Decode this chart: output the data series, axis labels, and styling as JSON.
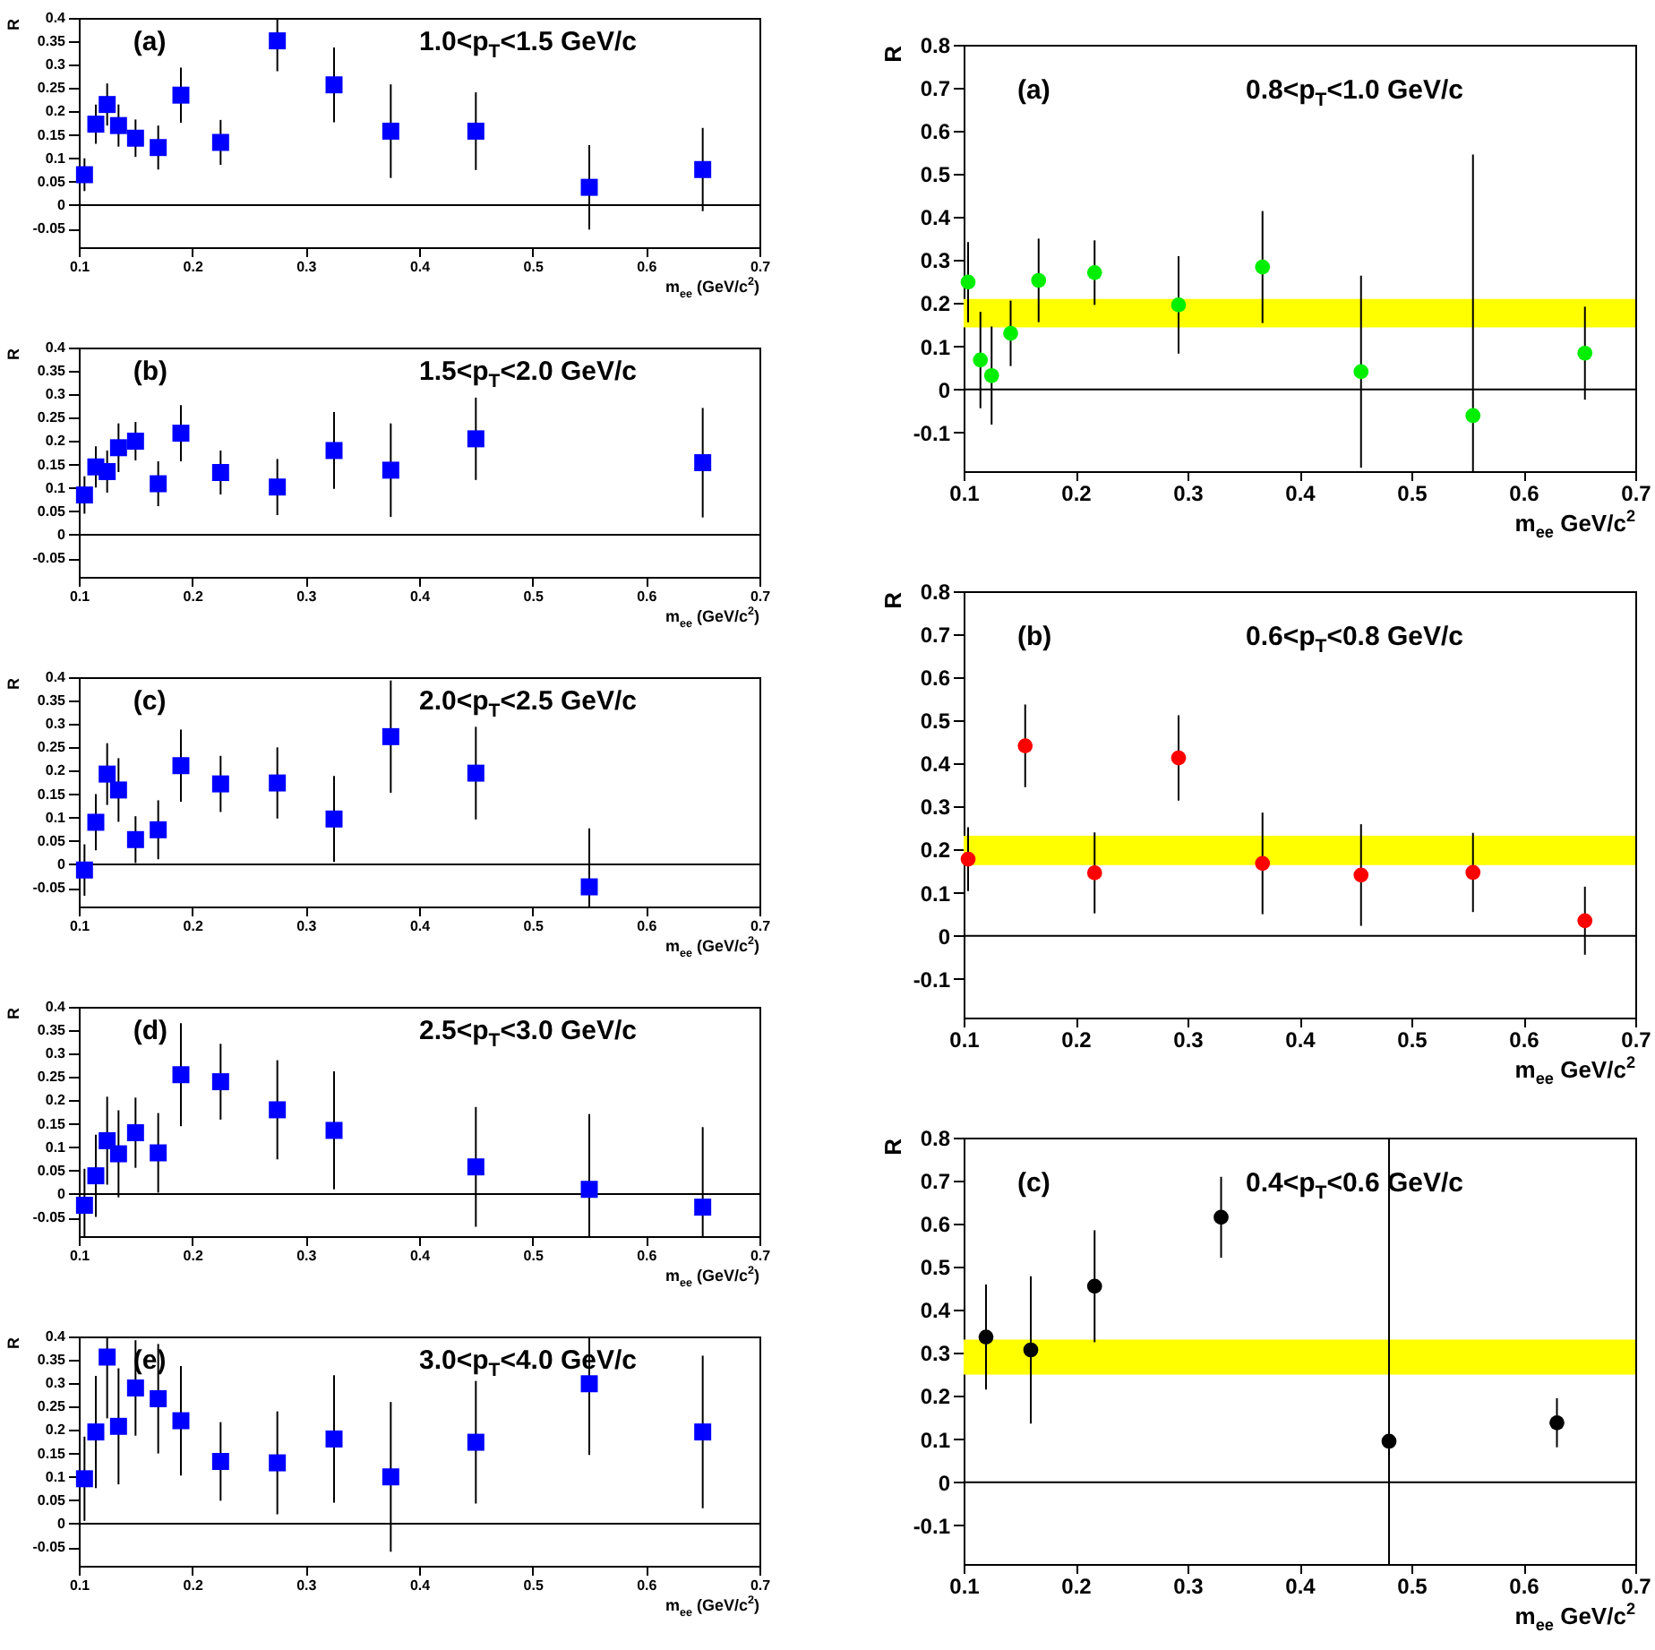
{
  "chart_data": [
    {
      "type": "scatter",
      "ylabel": "R",
      "xlabel": "m$_{ee}$ (GeV/c$^{2}$)",
      "annotations": [
        "(a)",
        "1.0<p$_{T}$<1.5 GeV/c"
      ],
      "xlim": [
        0.1,
        0.7
      ],
      "ylim": [
        -0.09,
        0.4
      ],
      "xticks": [
        0.1,
        0.2,
        0.3,
        0.4,
        0.5,
        0.6,
        0.7
      ],
      "yticks": [
        -0.05,
        0,
        0.05,
        0.1,
        0.15,
        0.2,
        0.25,
        0.3,
        0.35,
        0.4
      ],
      "marker": "square",
      "ref_lines": [
        {
          "axis": "y",
          "value": 0,
          "color": "#000000"
        }
      ],
      "series": [
        {
          "color": "#0000ff",
          "x": [
            0.105,
            0.115,
            0.125,
            0.135,
            0.15,
            0.17,
            0.19,
            0.225,
            0.275,
            0.325,
            0.375,
            0.45,
            0.55,
            0.65
          ],
          "values": [
            0.065,
            0.173,
            0.215,
            0.17,
            0.143,
            0.123,
            0.235,
            0.134,
            0.351,
            0.257,
            0.158,
            0.158,
            0.038,
            0.076
          ],
          "errors": [
            0.035,
            0.042,
            0.045,
            0.045,
            0.04,
            0.047,
            0.059,
            0.048,
            [
              0.286,
              0.4
            ],
            0.08,
            0.1,
            0.083,
            0.09,
            0.089
          ]
        }
      ]
    },
    {
      "type": "scatter",
      "ylabel": "R",
      "xlabel": "m$_{ee}$ (GeV/c$^{2}$)",
      "annotations": [
        "(b)",
        "1.5<p$_{T}$<2.0 GeV/c"
      ],
      "xlim": [
        0.1,
        0.7
      ],
      "ylim": [
        -0.09,
        0.4
      ],
      "xticks": [
        0.1,
        0.2,
        0.3,
        0.4,
        0.5,
        0.6,
        0.7
      ],
      "yticks": [
        -0.05,
        0,
        0.05,
        0.1,
        0.15,
        0.2,
        0.25,
        0.3,
        0.35,
        0.4
      ],
      "marker": "square",
      "ref_lines": [
        {
          "axis": "y",
          "value": 0,
          "color": "#000000"
        }
      ],
      "series": [
        {
          "color": "#0000ff",
          "x": [
            0.105,
            0.115,
            0.125,
            0.135,
            0.15,
            0.17,
            0.19,
            0.225,
            0.275,
            0.325,
            0.375,
            0.45,
            0.65
          ],
          "values": [
            0.085,
            0.145,
            0.135,
            0.186,
            0.2,
            0.109,
            0.217,
            0.133,
            0.102,
            0.18,
            0.138,
            0.205,
            0.154
          ],
          "errors": [
            0.04,
            0.044,
            0.045,
            0.052,
            0.041,
            0.048,
            0.06,
            0.047,
            0.06,
            0.082,
            0.1,
            0.088,
            0.117
          ]
        }
      ]
    },
    {
      "type": "scatter",
      "ylabel": "R",
      "xlabel": "m$_{ee}$ (GeV/c$^{2}$)",
      "annotations": [
        "(c)",
        "2.0<p$_{T}$<2.5 GeV/c"
      ],
      "xlim": [
        0.1,
        0.7
      ],
      "ylim": [
        -0.09,
        0.4
      ],
      "xticks": [
        0.1,
        0.2,
        0.3,
        0.4,
        0.5,
        0.6,
        0.7
      ],
      "yticks": [
        -0.05,
        0,
        0.05,
        0.1,
        0.15,
        0.2,
        0.25,
        0.3,
        0.35,
        0.4
      ],
      "marker": "square",
      "ref_lines": [
        {
          "axis": "y",
          "value": 0,
          "color": "#000000"
        }
      ],
      "series": [
        {
          "color": "#0000ff",
          "x": [
            0.105,
            0.115,
            0.125,
            0.135,
            0.15,
            0.17,
            0.19,
            0.225,
            0.275,
            0.325,
            0.375,
            0.45,
            0.55
          ],
          "values": [
            -0.012,
            0.09,
            0.193,
            0.159,
            0.053,
            0.074,
            0.211,
            0.172,
            0.174,
            0.097,
            0.273,
            0.195,
            -0.048
          ],
          "errors": [
            0.055,
            0.06,
            0.066,
            0.068,
            0.05,
            0.063,
            0.077,
            0.06,
            0.076,
            0.092,
            0.12,
            0.099,
            [
              -0.09,
              0.077
            ]
          ]
        }
      ]
    },
    {
      "type": "scatter",
      "ylabel": "R",
      "xlabel": "m$_{ee}$ (GeV/c$^{2}$)",
      "annotations": [
        "(d)",
        "2.5<p$_{T}$<3.0 GeV/c"
      ],
      "xlim": [
        0.1,
        0.7
      ],
      "ylim": [
        -0.09,
        0.4
      ],
      "xticks": [
        0.1,
        0.2,
        0.3,
        0.4,
        0.5,
        0.6,
        0.7
      ],
      "yticks": [
        -0.05,
        0,
        0.05,
        0.1,
        0.15,
        0.2,
        0.25,
        0.3,
        0.35,
        0.4
      ],
      "marker": "square",
      "ref_lines": [
        {
          "axis": "y",
          "value": 0,
          "color": "#000000"
        }
      ],
      "series": [
        {
          "color": "#0000ff",
          "x": [
            0.105,
            0.115,
            0.125,
            0.135,
            0.15,
            0.17,
            0.19,
            0.225,
            0.275,
            0.325,
            0.45,
            0.55,
            0.65
          ],
          "values": [
            -0.024,
            0.039,
            0.114,
            0.086,
            0.131,
            0.088,
            0.255,
            0.24,
            0.18,
            0.136,
            0.058,
            0.01,
            -0.028
          ],
          "errors": [
            [
              -0.09,
              0.054
            ],
            0.088,
            0.094,
            0.093,
            0.075,
            0.085,
            0.11,
            0.081,
            0.106,
            0.126,
            0.128,
            [
              -0.09,
              0.171
            ],
            [
              -0.09,
              0.143
            ]
          ]
        }
      ]
    },
    {
      "type": "scatter",
      "ylabel": "R",
      "xlabel": "m$_{ee}$ (GeV/c$^{2}$)",
      "annotations": [
        "(e)",
        "3.0<p$_{T}$<4.0 GeV/c"
      ],
      "xlim": [
        0.1,
        0.7
      ],
      "ylim": [
        -0.09,
        0.4
      ],
      "xticks": [
        0.1,
        0.2,
        0.3,
        0.4,
        0.5,
        0.6,
        0.7
      ],
      "yticks": [
        -0.05,
        0,
        0.05,
        0.1,
        0.15,
        0.2,
        0.25,
        0.3,
        0.35,
        0.4
      ],
      "marker": "square",
      "ref_lines": [
        {
          "axis": "y",
          "value": 0,
          "color": "#000000"
        }
      ],
      "series": [
        {
          "color": "#0000ff",
          "x": [
            0.105,
            0.115,
            0.125,
            0.135,
            0.15,
            0.17,
            0.19,
            0.225,
            0.275,
            0.325,
            0.375,
            0.45,
            0.55,
            0.65
          ],
          "values": [
            0.096,
            0.196,
            0.356,
            0.208,
            0.29,
            0.267,
            0.22,
            0.133,
            0.13,
            0.181,
            0.1,
            0.174,
            0.299,
            0.196
          ],
          "errors": [
            0.09,
            0.12,
            [
              0.225,
              0.4
            ],
            0.124,
            0.102,
            0.117,
            0.117,
            0.084,
            0.11,
            0.136,
            0.16,
            0.131,
            [
              0.147,
              0.4
            ],
            0.163
          ]
        }
      ]
    },
    {
      "type": "scatter",
      "ylabel": "R",
      "xlabel": "m$_{ee}$ GeV/c$^{2}$",
      "annotations": [
        "(a)",
        "0.8<p$_{T}$<1.0 GeV/c"
      ],
      "xlim": [
        0.1,
        0.7
      ],
      "ylim": [
        -0.19,
        0.8
      ],
      "xticks": [
        0.1,
        0.2,
        0.3,
        0.4,
        0.5,
        0.6,
        0.7
      ],
      "yticks": [
        -0.1,
        0,
        0.1,
        0.2,
        0.3,
        0.4,
        0.5,
        0.6,
        0.7,
        0.8
      ],
      "marker": "circle",
      "ref_lines": [
        {
          "axis": "y",
          "value": 0,
          "color": "#000000"
        }
      ],
      "bands": [
        {
          "axis": "y",
          "from": 0.144,
          "to": 0.21,
          "color": "#ffff00"
        }
      ],
      "series": [
        {
          "color": "#00ee00",
          "x": [
            0.104,
            0.115,
            0.125,
            0.142,
            0.167,
            0.217,
            0.292,
            0.367,
            0.455,
            0.555,
            0.655
          ],
          "values": [
            0.249,
            0.068,
            0.032,
            0.13,
            0.253,
            0.271,
            0.196,
            0.284,
            0.041,
            -0.061,
            0.084
          ],
          "errors": [
            0.093,
            0.112,
            0.114,
            0.076,
            0.097,
            0.075,
            0.113,
            0.13,
            0.223,
            [
              -0.19,
              0.545
            ],
            0.108
          ]
        }
      ]
    },
    {
      "type": "scatter",
      "ylabel": "R",
      "xlabel": "m$_{ee}$ GeV/c$^{2}$",
      "annotations": [
        "(b)",
        "0.6<p$_{T}$<0.8 GeV/c"
      ],
      "xlim": [
        0.1,
        0.7
      ],
      "ylim": [
        -0.19,
        0.8
      ],
      "xticks": [
        0.1,
        0.2,
        0.3,
        0.4,
        0.5,
        0.6,
        0.7
      ],
      "yticks": [
        -0.1,
        0,
        0.1,
        0.2,
        0.3,
        0.4,
        0.5,
        0.6,
        0.7,
        0.8
      ],
      "marker": "circle",
      "ref_lines": [
        {
          "axis": "y",
          "value": 0,
          "color": "#000000"
        }
      ],
      "bands": [
        {
          "axis": "y",
          "from": 0.164,
          "to": 0.232,
          "color": "#ffff00"
        }
      ],
      "series": [
        {
          "color": "#ff0000",
          "x": [
            0.104,
            0.155,
            0.217,
            0.292,
            0.367,
            0.455,
            0.555,
            0.655
          ],
          "values": [
            0.178,
            0.441,
            0.146,
            0.413,
            0.168,
            0.141,
            0.147,
            0.035
          ],
          "errors": [
            0.074,
            0.096,
            0.094,
            0.099,
            0.118,
            0.118,
            0.092,
            0.079
          ]
        }
      ]
    },
    {
      "type": "scatter",
      "ylabel": "R",
      "xlabel": "m$_{ee}$ GeV/c$^{2}$",
      "annotations": [
        "(c)",
        "0.4<p$_{T}$<0.6 GeV/c"
      ],
      "xlim": [
        0.1,
        0.7
      ],
      "ylim": [
        -0.19,
        0.8
      ],
      "xticks": [
        0.1,
        0.2,
        0.3,
        0.4,
        0.5,
        0.6,
        0.7
      ],
      "yticks": [
        -0.1,
        0,
        0.1,
        0.2,
        0.3,
        0.4,
        0.5,
        0.6,
        0.7,
        0.8
      ],
      "marker": "circle",
      "ref_lines": [
        {
          "axis": "y",
          "value": 0,
          "color": "#000000"
        }
      ],
      "bands": [
        {
          "axis": "y",
          "from": 0.25,
          "to": 0.331,
          "color": "#ffff00"
        }
      ],
      "series": [
        {
          "color": "#000000",
          "x": [
            0.12,
            0.16,
            0.217,
            0.33,
            0.48,
            0.63
          ],
          "values": [
            0.337,
            0.307,
            0.455,
            0.615,
            0.095,
            0.138
          ],
          "errors": [
            0.122,
            0.171,
            0.13,
            0.094,
            [
              -0.19,
              0.8
            ],
            0.057
          ]
        }
      ]
    }
  ]
}
